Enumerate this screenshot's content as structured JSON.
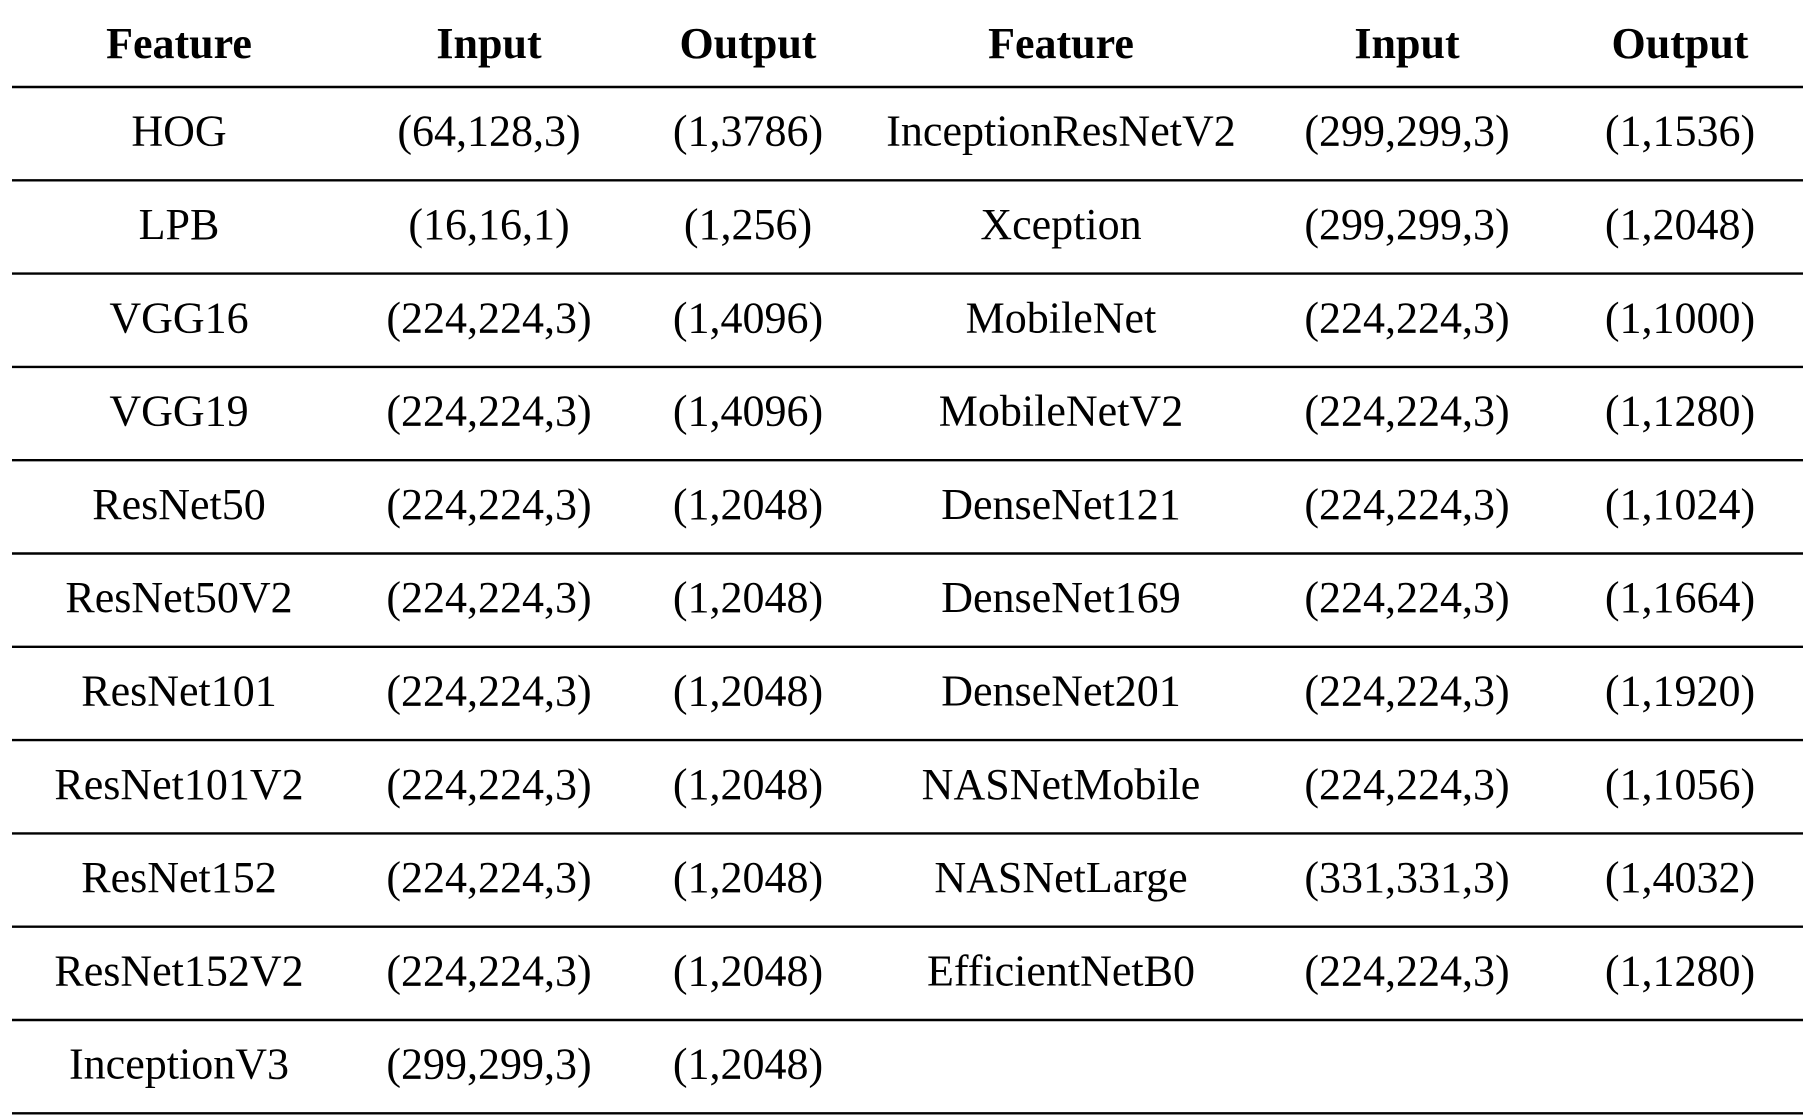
{
  "table": {
    "header": [
      "Feature",
      "Input",
      "Output",
      "Feature",
      "Input",
      "Output"
    ],
    "rows": [
      [
        "HOG",
        "(64,128,3)",
        "(1,3786)",
        "InceptionResNetV2",
        "(299,299,3)",
        "(1,1536)"
      ],
      [
        "LPB",
        "(16,16,1)",
        "(1,256)",
        "Xception",
        "(299,299,3)",
        "(1,2048)"
      ],
      [
        "VGG16",
        "(224,224,3)",
        "(1,4096)",
        "MobileNet",
        "(224,224,3)",
        "(1,1000)"
      ],
      [
        "VGG19",
        "(224,224,3)",
        "(1,4096)",
        "MobileNetV2",
        "(224,224,3)",
        "(1,1280)"
      ],
      [
        "ResNet50",
        "(224,224,3)",
        "(1,2048)",
        "DenseNet121",
        "(224,224,3)",
        "(1,1024)"
      ],
      [
        "ResNet50V2",
        "(224,224,3)",
        "(1,2048)",
        "DenseNet169",
        "(224,224,3)",
        "(1,1664)"
      ],
      [
        "ResNet101",
        "(224,224,3)",
        "(1,2048)",
        "DenseNet201",
        "(224,224,3)",
        "(1,1920)"
      ],
      [
        "ResNet101V2",
        "(224,224,3)",
        "(1,2048)",
        "NASNetMobile",
        "(224,224,3)",
        "(1,1056)"
      ],
      [
        "ResNet152",
        "(224,224,3)",
        "(1,2048)",
        "NASNetLarge",
        "(331,331,3)",
        "(1,4032)"
      ],
      [
        "ResNet152V2",
        "(224,224,3)",
        "(1,2048)",
        "EfficientNetB0",
        "(224,224,3)",
        "(1,1280)"
      ],
      [
        "InceptionV3",
        "(299,299,3)",
        "(1,2048)"
      ]
    ]
  }
}
